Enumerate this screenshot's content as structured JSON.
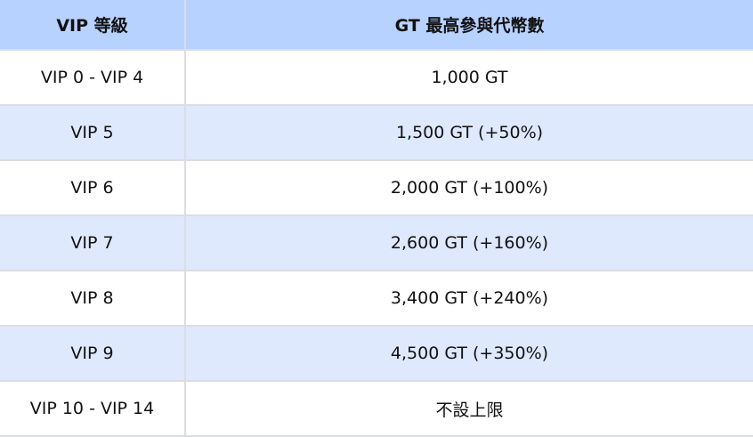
{
  "headers": [
    "VIP 等級",
    "GT 最高參與代幣數"
  ],
  "rows": [
    [
      "VIP 0 - VIP 4",
      "1,000 GT"
    ],
    [
      "VIP 5",
      "1,500 GT (+50%)"
    ],
    [
      "VIP 6",
      "2,000 GT (+100%)"
    ],
    [
      "VIP 7",
      "2,600 GT (+160%)"
    ],
    [
      "VIP 8",
      "3,400 GT (+240%)"
    ],
    [
      "VIP 9",
      "4,500 GT (+350%)"
    ],
    [
      "VIP 10 - VIP 14",
      "不設上限"
    ]
  ],
  "colors": {
    "header_bg": "#b7d2fe",
    "alt_row_bg": "#dfe9fd",
    "border": "#dcdde2"
  }
}
